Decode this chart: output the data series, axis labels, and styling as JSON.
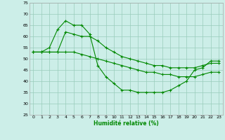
{
  "xlabel": "Humidité relative (%)",
  "background_color": "#cceee8",
  "grid_color": "#99ccbb",
  "line_color": "#008800",
  "xlim": [
    -0.5,
    23.5
  ],
  "ylim": [
    25,
    75
  ],
  "yticks": [
    25,
    30,
    35,
    40,
    45,
    50,
    55,
    60,
    65,
    70,
    75
  ],
  "xticks": [
    0,
    1,
    2,
    3,
    4,
    5,
    6,
    7,
    8,
    9,
    10,
    11,
    12,
    13,
    14,
    15,
    16,
    17,
    18,
    19,
    20,
    21,
    22,
    23
  ],
  "line1_x": [
    0,
    1,
    2,
    3,
    4,
    5,
    6,
    7,
    8,
    9,
    10,
    11,
    12,
    13,
    14,
    15,
    16,
    17,
    18,
    19,
    20,
    21,
    22,
    23
  ],
  "line1_y": [
    53,
    53,
    55,
    63,
    67,
    65,
    65,
    61,
    47,
    42,
    39,
    36,
    36,
    35,
    35,
    35,
    35,
    36,
    38,
    40,
    45,
    46,
    49,
    49
  ],
  "line2_x": [
    0,
    1,
    2,
    3,
    4,
    5,
    6,
    7,
    8,
    9,
    10,
    11,
    12,
    13,
    14,
    15,
    16,
    17,
    18,
    19,
    20,
    21,
    22,
    23
  ],
  "line2_y": [
    53,
    53,
    53,
    53,
    62,
    61,
    60,
    60,
    58,
    55,
    53,
    51,
    50,
    49,
    48,
    47,
    47,
    46,
    46,
    46,
    46,
    47,
    48,
    48
  ],
  "line3_x": [
    0,
    1,
    2,
    3,
    4,
    5,
    6,
    7,
    8,
    9,
    10,
    11,
    12,
    13,
    14,
    15,
    16,
    17,
    18,
    19,
    20,
    21,
    22,
    23
  ],
  "line3_y": [
    53,
    53,
    53,
    53,
    53,
    53,
    52,
    51,
    50,
    49,
    48,
    47,
    46,
    45,
    44,
    44,
    43,
    43,
    42,
    42,
    42,
    43,
    44,
    44
  ]
}
